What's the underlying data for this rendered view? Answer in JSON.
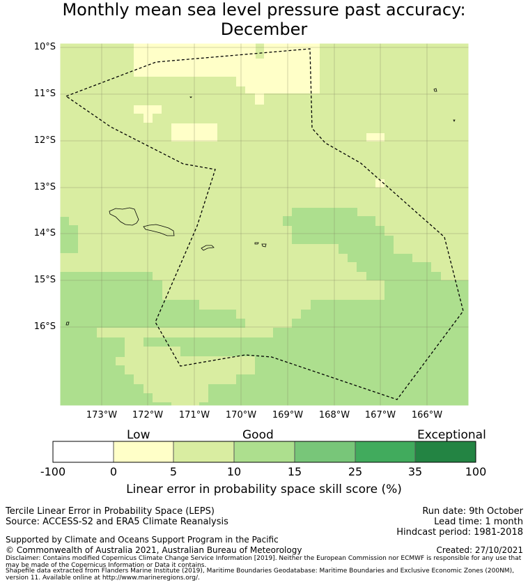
{
  "title_line1": "Monthly mean sea level pressure past accuracy:",
  "title_line2": "December",
  "map": {
    "lat_labels": [
      "10°S",
      "11°S",
      "12°S",
      "13°S",
      "14°S",
      "15°S",
      "16°S"
    ],
    "lon_labels": [
      "173°W",
      "172°W",
      "171°W",
      "170°W",
      "169°W",
      "168°W",
      "167°W",
      "166°W"
    ],
    "colors": {
      "good": "#d9eda1",
      "low": "#ffffc8",
      "mid": "#addf8e",
      "border": "#000000"
    }
  },
  "colorbar": {
    "category_labels": {
      "low": "Low",
      "good": "Good",
      "exceptional": "Exceptional"
    },
    "ticks": [
      "-100",
      "0",
      "5",
      "10",
      "15",
      "25",
      "35",
      "100"
    ],
    "colors": [
      "#ffffff",
      "#ffffc8",
      "#d9eda1",
      "#addf8e",
      "#78c679",
      "#41ab5d",
      "#238443"
    ],
    "label": "Linear error in probability space skill score (%)"
  },
  "footer": {
    "method": "Tercile Linear Error in Probability Space (LEPS)",
    "source": "Source: ACCESS-S2 and ERA5 Climate Reanalysis",
    "run_date": "Run date: 9th October",
    "lead_time": "Lead time: 1 month",
    "hindcast": "Hindcast period: 1981-2018",
    "support": "Supported by Climate and Oceans Support Program in the Pacific",
    "copyright": "© Commonwealth of Australia 2021, Australian Bureau of Meteorology",
    "created": "Created: 27/10/2021",
    "disclaimer": "Disclaimer: Contains modified Copernicus Climate Change Service Information [2019]. Neither the European Commission nor ECMWF is responsible for any use that may be made of the Copernicus Information or Data it contains.",
    "shapefile": "Shapefile data extracted from Flanders Marine Institute (2019), Maritime Boundaries Geodatabase: Maritime Boundaries and Exclusive Economic Zones (200NM), version 11. Available online at http://www.marineregions.org/."
  }
}
